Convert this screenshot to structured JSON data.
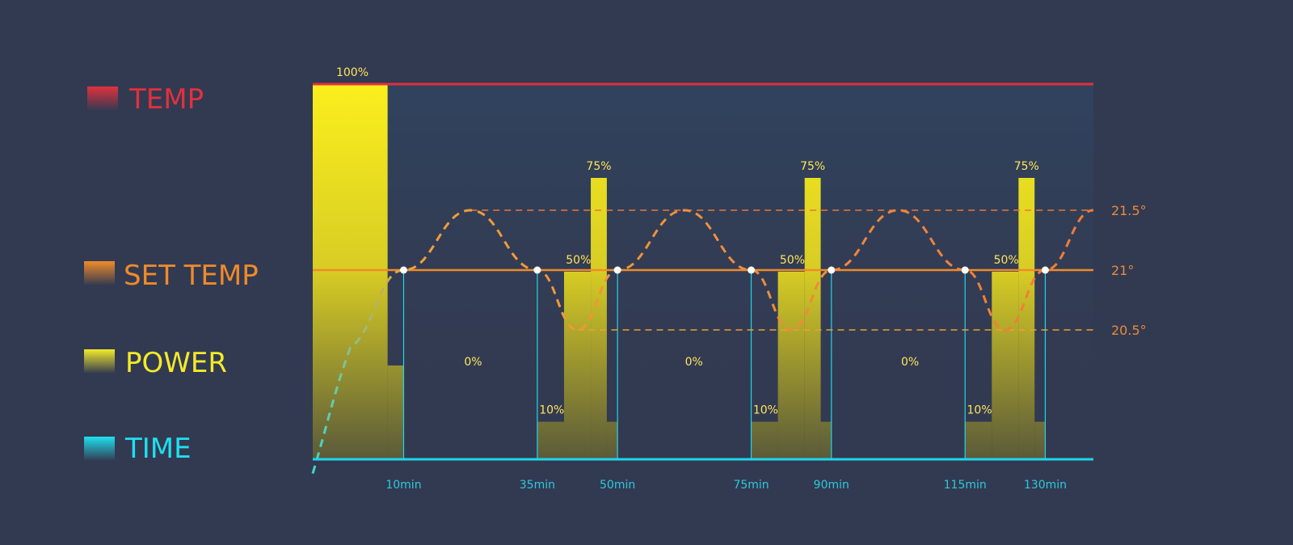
{
  "legend": [
    {
      "label": "TEMP",
      "color": "#e2303d"
    },
    {
      "label": "SET TEMP",
      "color": "#f08a2a"
    },
    {
      "label": "POWER",
      "color": "#f3ea2a"
    },
    {
      "label": "TIME",
      "color": "#1fe0f0"
    }
  ],
  "colors": {
    "background": "#323a51",
    "temp_max_line": "#e2303d",
    "set_temp_line": "#f08a2a",
    "power": "#f7ee1c",
    "time_axis": "#1fd6ea",
    "band_line": "#f0a030"
  },
  "chart_data": {
    "type": "area",
    "xlabel": "",
    "ylabel": "",
    "x_ticks": [
      {
        "value": 10,
        "label": "10min"
      },
      {
        "value": 35,
        "label": "35min"
      },
      {
        "value": 50,
        "label": "50min"
      },
      {
        "value": 75,
        "label": "75min"
      },
      {
        "value": 90,
        "label": "90min"
      },
      {
        "value": 115,
        "label": "115min"
      },
      {
        "value": 130,
        "label": "130min"
      }
    ],
    "xlim": [
      -7,
      139
    ],
    "temp_ticks": [
      {
        "value": 21.5,
        "label": "21.5°"
      },
      {
        "value": 21.0,
        "label": "21°"
      },
      {
        "value": 20.5,
        "label": "20.5°"
      }
    ],
    "set_temp": 21.0,
    "power_segments": [
      {
        "start": -7,
        "end": 7,
        "value": 100
      },
      {
        "start": 7,
        "end": 10,
        "value": 25
      },
      {
        "start": 35,
        "end": 40,
        "value": 10
      },
      {
        "start": 40,
        "end": 45,
        "value": 50
      },
      {
        "start": 45,
        "end": 48,
        "value": 75
      },
      {
        "start": 48,
        "end": 50,
        "value": 10
      },
      {
        "start": 75,
        "end": 80,
        "value": 10
      },
      {
        "start": 80,
        "end": 85,
        "value": 50
      },
      {
        "start": 85,
        "end": 88,
        "value": 75
      },
      {
        "start": 88,
        "end": 90,
        "value": 10
      },
      {
        "start": 115,
        "end": 120,
        "value": 10
      },
      {
        "start": 120,
        "end": 125,
        "value": 50
      },
      {
        "start": 125,
        "end": 128,
        "value": 75
      },
      {
        "start": 128,
        "end": 130,
        "value": 10
      }
    ],
    "power_labels": [
      {
        "x": 0,
        "value": 100,
        "label": "100%"
      },
      {
        "x": 23,
        "value": 0,
        "label": "0%"
      },
      {
        "x": 42.7,
        "value": 50,
        "label": "50%"
      },
      {
        "x": 46.5,
        "value": 75,
        "label": "75%"
      },
      {
        "x": 37.7,
        "value": 10,
        "label": "10%"
      },
      {
        "x": 64.3,
        "value": 0,
        "label": "0%"
      },
      {
        "x": 82.7,
        "value": 50,
        "label": "50%"
      },
      {
        "x": 86.5,
        "value": 75,
        "label": "75%"
      },
      {
        "x": 77.7,
        "value": 10,
        "label": "10%"
      },
      {
        "x": 104.7,
        "value": 0,
        "label": "0%"
      },
      {
        "x": 122.7,
        "value": 50,
        "label": "50%"
      },
      {
        "x": 126.5,
        "value": 75,
        "label": "75%"
      },
      {
        "x": 117.7,
        "value": 10,
        "label": "10%"
      }
    ],
    "temp_curve": [
      {
        "t": -7,
        "temp": 19.3
      },
      {
        "t": 0,
        "temp": 20.35
      },
      {
        "t": 10,
        "temp": 21.0
      },
      {
        "t": 22.5,
        "temp": 21.5
      },
      {
        "t": 35,
        "temp": 21.0
      },
      {
        "t": 42.5,
        "temp": 20.5
      },
      {
        "t": 50,
        "temp": 21.0
      },
      {
        "t": 62.5,
        "temp": 21.5
      },
      {
        "t": 75,
        "temp": 21.0
      },
      {
        "t": 82.5,
        "temp": 20.5
      },
      {
        "t": 90,
        "temp": 21.0
      },
      {
        "t": 102.5,
        "temp": 21.5
      },
      {
        "t": 115,
        "temp": 21.0
      },
      {
        "t": 122.5,
        "temp": 20.5
      },
      {
        "t": 130,
        "temp": 21.0
      },
      {
        "t": 139,
        "temp": 21.5
      }
    ],
    "crossing_points": [
      10,
      35,
      50,
      75,
      90,
      115,
      130
    ]
  }
}
